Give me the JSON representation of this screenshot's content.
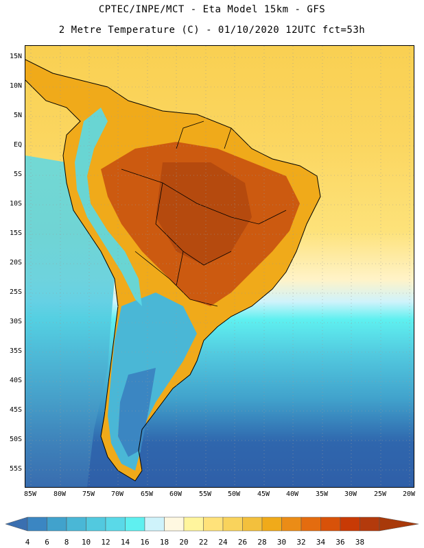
{
  "title_line1": "CPTEC/INPE/MCT -  Eta Model 15km - GFS",
  "title_line2": "2 Metre Temperature (C) - 01/10/2020 12UTC fct=53h",
  "lat_labels": [
    "15N",
    "10N",
    "5N",
    "EQ",
    "5S",
    "10S",
    "15S",
    "20S",
    "25S",
    "30S",
    "35S",
    "40S",
    "45S",
    "50S",
    "55S"
  ],
  "lon_labels": [
    "85W",
    "80W",
    "75W",
    "70W",
    "65W",
    "60W",
    "55W",
    "50W",
    "45W",
    "40W",
    "35W",
    "30W",
    "25W",
    "20W"
  ],
  "colorbar": {
    "labels": [
      "4",
      "6",
      "8",
      "10",
      "12",
      "14",
      "16",
      "18",
      "20",
      "22",
      "24",
      "26",
      "28",
      "30",
      "32",
      "34",
      "36",
      "38"
    ],
    "colors": [
      "#3a6fb0",
      "#3b86c2",
      "#41a2cc",
      "#4ab7d6",
      "#52c9df",
      "#5ad9e8",
      "#5ff0f0",
      "#cff3fb",
      "#fff8e1",
      "#fff59d",
      "#ffe27a",
      "#f9d35c",
      "#f3c03d",
      "#f0aa1a",
      "#eb8c16",
      "#e46c0f",
      "#d85209",
      "#c83a05",
      "#b33a0c",
      "#a8390a"
    ]
  },
  "colors": {
    "cold_deep": "#2f5fa8",
    "cold": "#3c8ac6",
    "cool": "#4fc2dd",
    "mild": "#5fe8ee",
    "ocean_warm": "#fbd860",
    "land_hot": "#cc5a10",
    "land_hotter": "#b54a0e"
  }
}
